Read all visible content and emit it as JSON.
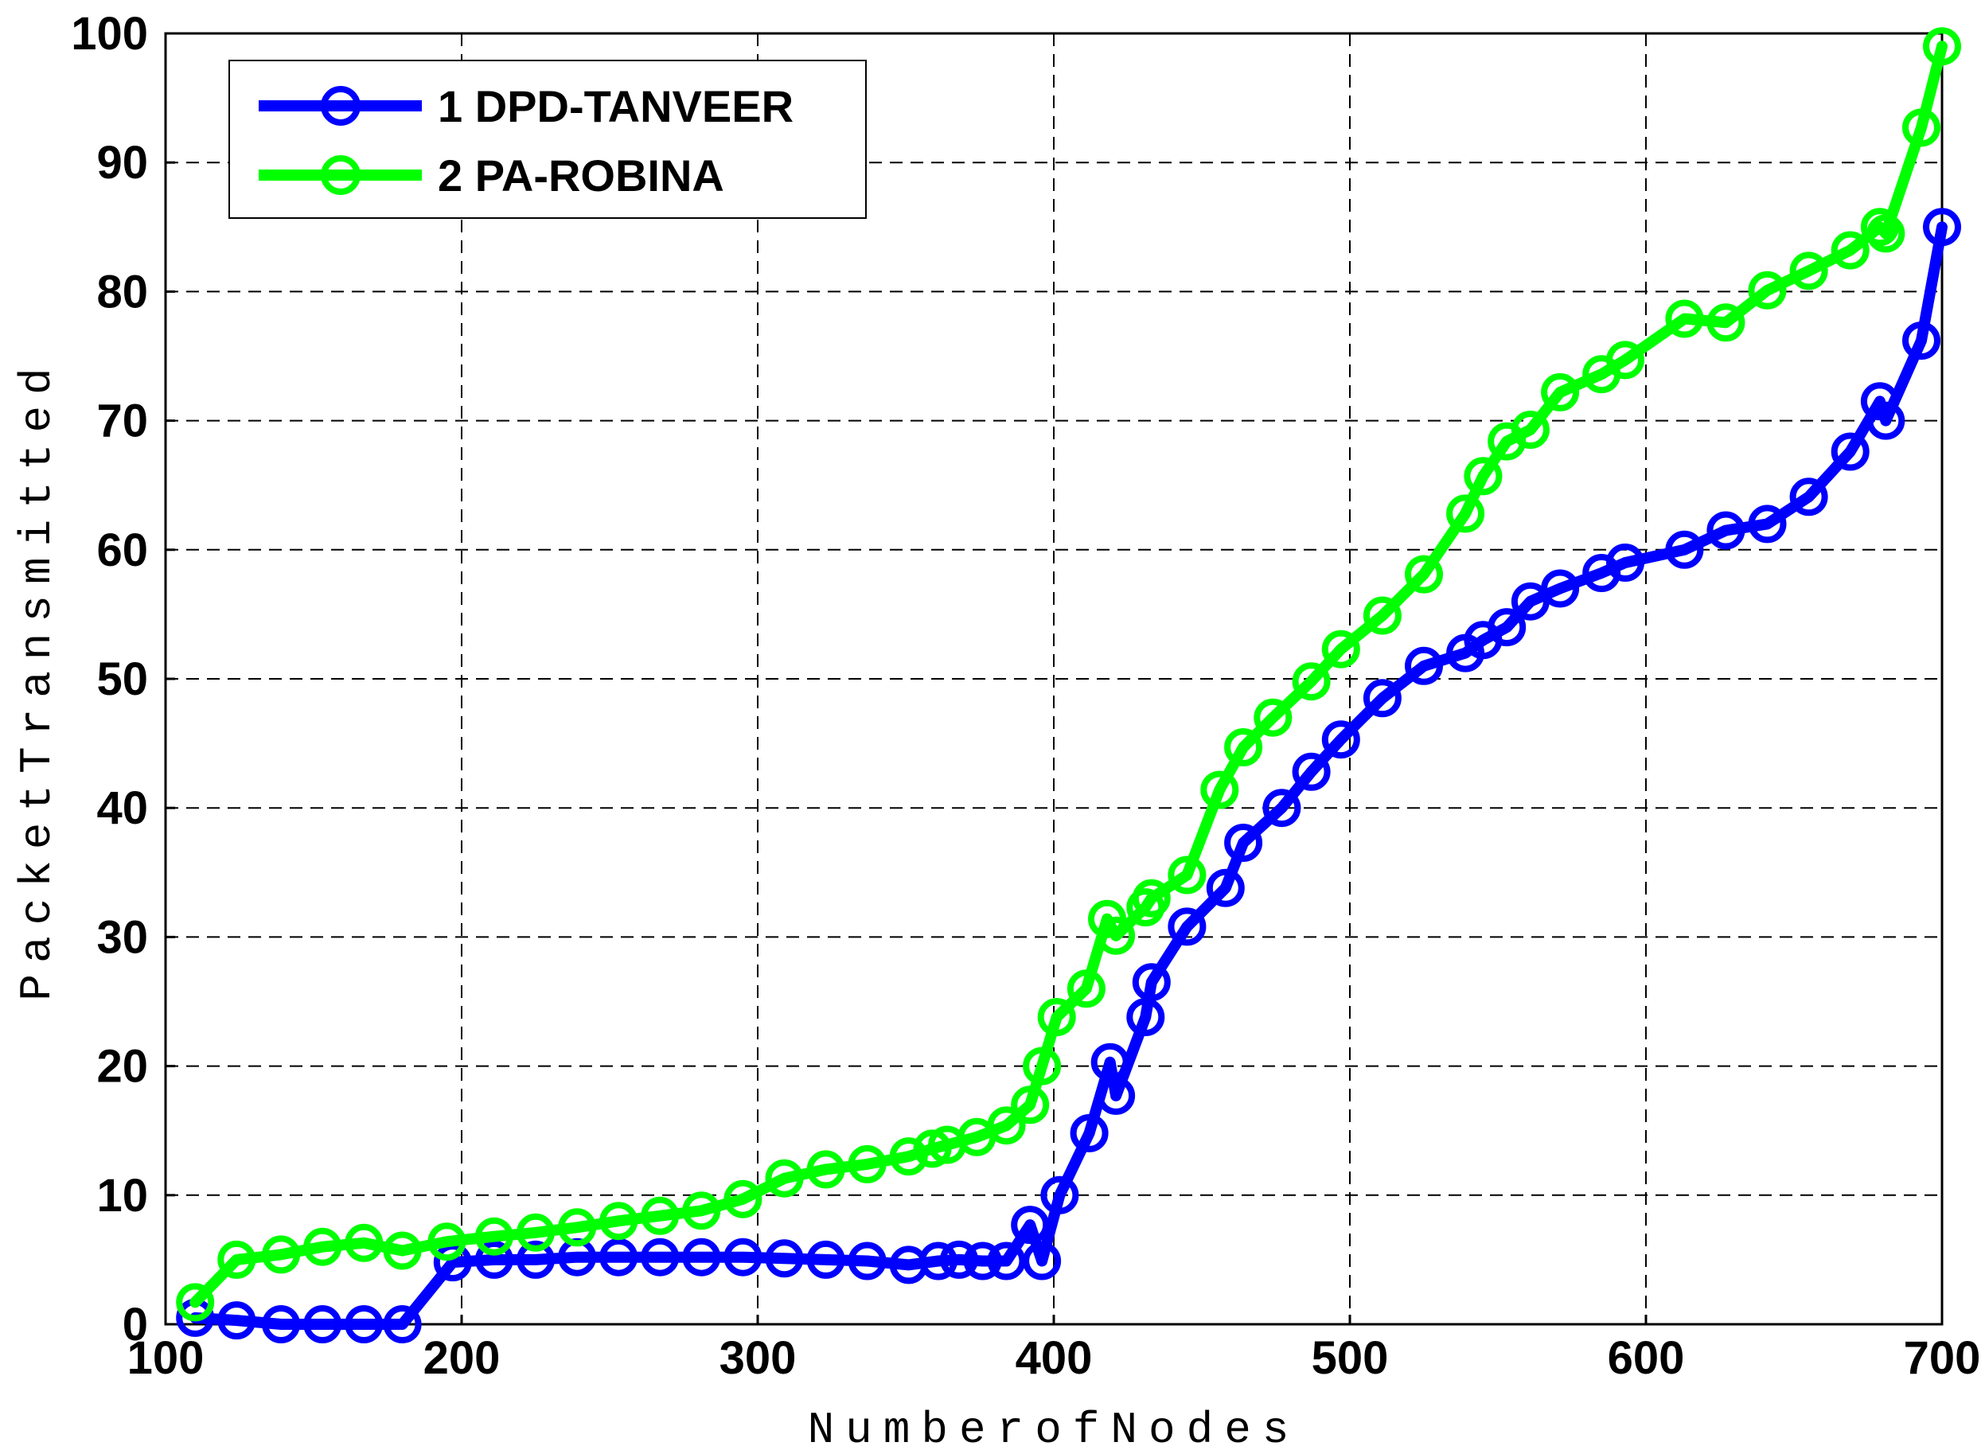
{
  "chart_data": {
    "type": "line",
    "xlabel": "NumberofNodes",
    "ylabel": "PacketTransmitted",
    "xlim": [
      100,
      700
    ],
    "ylim": [
      0,
      100
    ],
    "xticks": [
      100,
      200,
      300,
      400,
      500,
      600,
      700
    ],
    "yticks": [
      0,
      10,
      20,
      30,
      40,
      50,
      60,
      70,
      80,
      90,
      100
    ],
    "grid": true,
    "legend_position": "top-left",
    "series": [
      {
        "name": "1 DPD-TANVEER",
        "color": "#0000ff",
        "x": [
          110,
          124,
          139,
          153,
          167,
          180,
          197,
          211,
          225,
          239,
          253,
          267,
          281,
          295,
          309,
          323,
          337,
          351,
          361,
          368,
          376,
          384,
          392,
          396,
          402,
          412,
          419,
          421,
          431,
          433,
          445,
          458,
          464,
          477,
          487,
          497,
          511,
          525,
          539,
          545,
          553,
          561,
          571,
          585,
          593,
          613,
          627,
          641,
          655,
          669,
          679,
          681,
          693,
          700
        ],
        "y": [
          0.5,
          0.3,
          0,
          0,
          0,
          0,
          4.8,
          5,
          5,
          5.2,
          5.2,
          5.2,
          5.2,
          5.2,
          5.1,
          5,
          4.9,
          4.6,
          4.9,
          5,
          4.9,
          4.9,
          7.7,
          4.9,
          10,
          14.8,
          20.3,
          17.7,
          23.8,
          26.5,
          30.8,
          33.8,
          37.3,
          40,
          42.8,
          45.3,
          48.5,
          51,
          52,
          53,
          54,
          56,
          57,
          58.2,
          59,
          60,
          61.5,
          62,
          64.1,
          67.6,
          71.5,
          70,
          76.2,
          85
        ]
      },
      {
        "name": "2 PA-ROBINA",
        "color": "#00ff00",
        "x": [
          110,
          124,
          139,
          153,
          167,
          180,
          195,
          211,
          225,
          239,
          253,
          267,
          281,
          295,
          309,
          323,
          337,
          351,
          359,
          364,
          374,
          384,
          392,
          396,
          401,
          411,
          418,
          421,
          431,
          433,
          445,
          456,
          464,
          474,
          487,
          497,
          511,
          525,
          539,
          545,
          553,
          561,
          571,
          585,
          593,
          613,
          627,
          641,
          655,
          669,
          679,
          681,
          693,
          700
        ],
        "y": [
          1.7,
          5,
          5.4,
          6,
          6.3,
          5.7,
          6.4,
          6.8,
          7.1,
          7.5,
          8,
          8.4,
          8.8,
          9.7,
          11.3,
          12,
          12.4,
          13,
          13.6,
          13.9,
          14.5,
          15.4,
          17,
          20,
          23.8,
          26,
          31.4,
          30.1,
          32.3,
          33,
          34.8,
          41.4,
          44.7,
          47,
          49.8,
          52.3,
          54.9,
          58.1,
          62.8,
          65.7,
          68.4,
          69.3,
          72.2,
          73.6,
          74.7,
          77.9,
          77.6,
          80.1,
          81.6,
          83.2,
          85,
          84.5,
          92.7,
          99
        ]
      }
    ]
  }
}
